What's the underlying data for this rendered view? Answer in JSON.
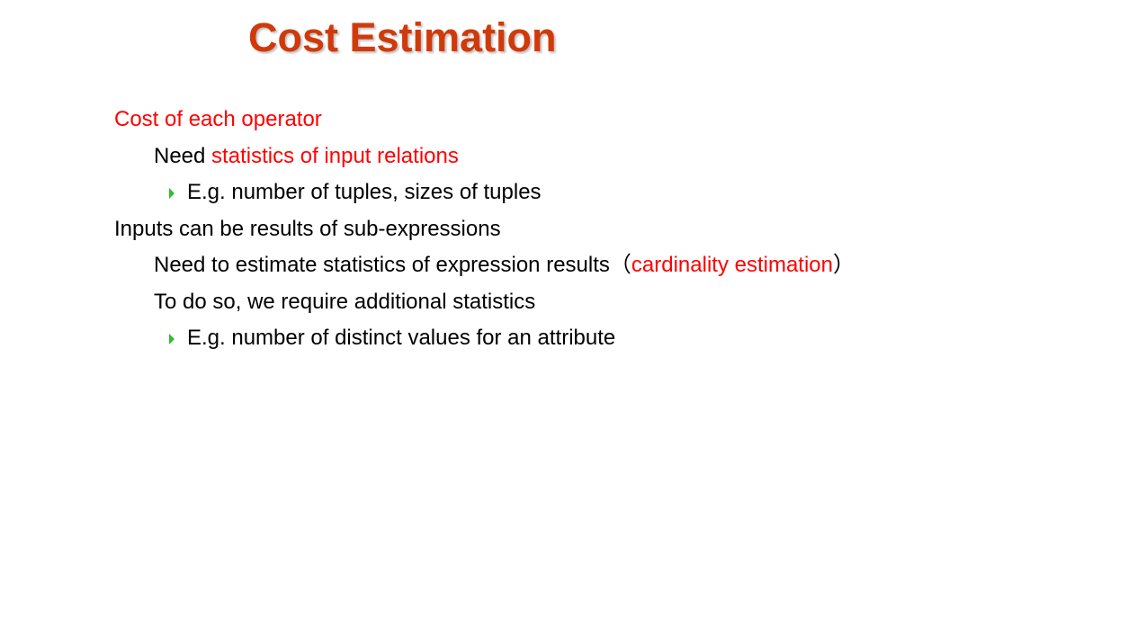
{
  "slide": {
    "title": "Cost Estimation",
    "lines": [
      {
        "text": "Cost of each operator"
      },
      {
        "prefix": "Need ",
        "highlight": "statistics of input relations"
      },
      {
        "text": "E.g. number of tuples, sizes of tuples"
      },
      {
        "text": "Inputs can be results of sub-expressions"
      },
      {
        "prefix": "Need to estimate statistics of expression results（",
        "highlight": "cardinality estimation",
        "suffix": "）"
      },
      {
        "text": "To do so, we require additional statistics"
      },
      {
        "text": "E.g. number of distinct values for an attribute"
      }
    ],
    "colors": {
      "title": "#d03a0a",
      "highlight": "#ff0000",
      "arrow": "#33bb33",
      "text": "#000000"
    },
    "icons": {
      "sub_bullet": "triangle-right-icon"
    }
  }
}
